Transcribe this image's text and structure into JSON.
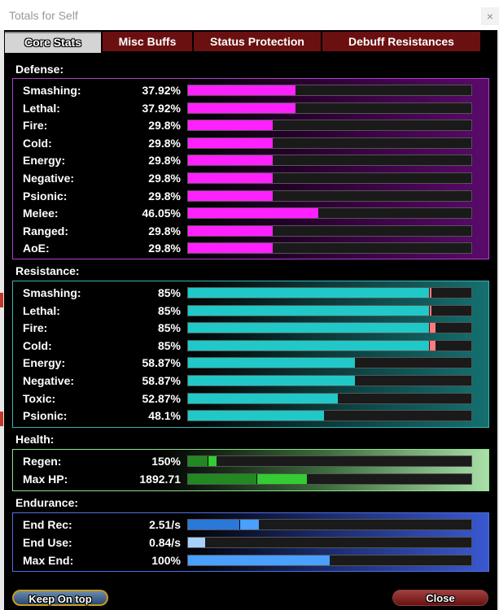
{
  "window": {
    "title": "Totals for Self",
    "close_glyph": "×"
  },
  "tabs": [
    {
      "label": "Core Stats",
      "active": true
    },
    {
      "label": "Misc Buffs",
      "active": false
    },
    {
      "label": "Status Protection",
      "active": false
    },
    {
      "label": "Debuff Resistances",
      "active": false
    }
  ],
  "colors": {
    "defense": "#ff20ff",
    "resistance": "#20c8c8",
    "health_light": "#33cc33",
    "health_dark": "#228822",
    "endurance_dark": "#2a78d8",
    "endurance_light": "#4aa0ff",
    "cap_marker": "#ff7a7a"
  },
  "defense": {
    "label": "Defense:",
    "rows": [
      {
        "label": "Smashing:",
        "value": "37.92%",
        "fill": 0.3792
      },
      {
        "label": "Lethal:",
        "value": "37.92%",
        "fill": 0.3792
      },
      {
        "label": "Fire:",
        "value": "29.8%",
        "fill": 0.298
      },
      {
        "label": "Cold:",
        "value": "29.8%",
        "fill": 0.298
      },
      {
        "label": "Energy:",
        "value": "29.8%",
        "fill": 0.298
      },
      {
        "label": "Negative:",
        "value": "29.8%",
        "fill": 0.298
      },
      {
        "label": "Psionic:",
        "value": "29.8%",
        "fill": 0.298
      },
      {
        "label": "Melee:",
        "value": "46.05%",
        "fill": 0.4605
      },
      {
        "label": "Ranged:",
        "value": "29.8%",
        "fill": 0.298
      },
      {
        "label": "AoE:",
        "value": "29.8%",
        "fill": 0.298
      }
    ]
  },
  "resistance": {
    "label": "Resistance:",
    "rows": [
      {
        "label": "Smashing:",
        "value": "85%",
        "fill": 0.85,
        "over": 0.005
      },
      {
        "label": "Lethal:",
        "value": "85%",
        "fill": 0.85,
        "over": 0.005
      },
      {
        "label": "Fire:",
        "value": "85%",
        "fill": 0.85,
        "over": 0.02
      },
      {
        "label": "Cold:",
        "value": "85%",
        "fill": 0.85,
        "over": 0.02
      },
      {
        "label": "Energy:",
        "value": "58.87%",
        "fill": 0.5887,
        "over": 0
      },
      {
        "label": "Negative:",
        "value": "58.87%",
        "fill": 0.5887,
        "over": 0
      },
      {
        "label": "Toxic:",
        "value": "52.87%",
        "fill": 0.5287,
        "over": 0
      },
      {
        "label": "Psionic:",
        "value": "48.1%",
        "fill": 0.481,
        "over": 0
      }
    ]
  },
  "health": {
    "label": "Health:",
    "rows": [
      {
        "label": "Regen:",
        "value": "150%",
        "base": 0.07,
        "total": 0.1
      },
      {
        "label": "Max HP:",
        "value": "1892.71",
        "base": 0.24,
        "total": 0.42
      }
    ]
  },
  "endurance": {
    "label": "Endurance:",
    "rows": [
      {
        "label": "End Rec:",
        "value": "2.51/s",
        "base": 0.18,
        "total": 0.25
      },
      {
        "label": "End Use:",
        "value": "0.84/s",
        "base": 0.0,
        "total": 0.06
      },
      {
        "label": "Max End:",
        "value": "100%",
        "base": 0.0,
        "total": 0.5
      }
    ]
  },
  "buttons": {
    "keep_on_top": "Keep On top",
    "close": "Close"
  }
}
